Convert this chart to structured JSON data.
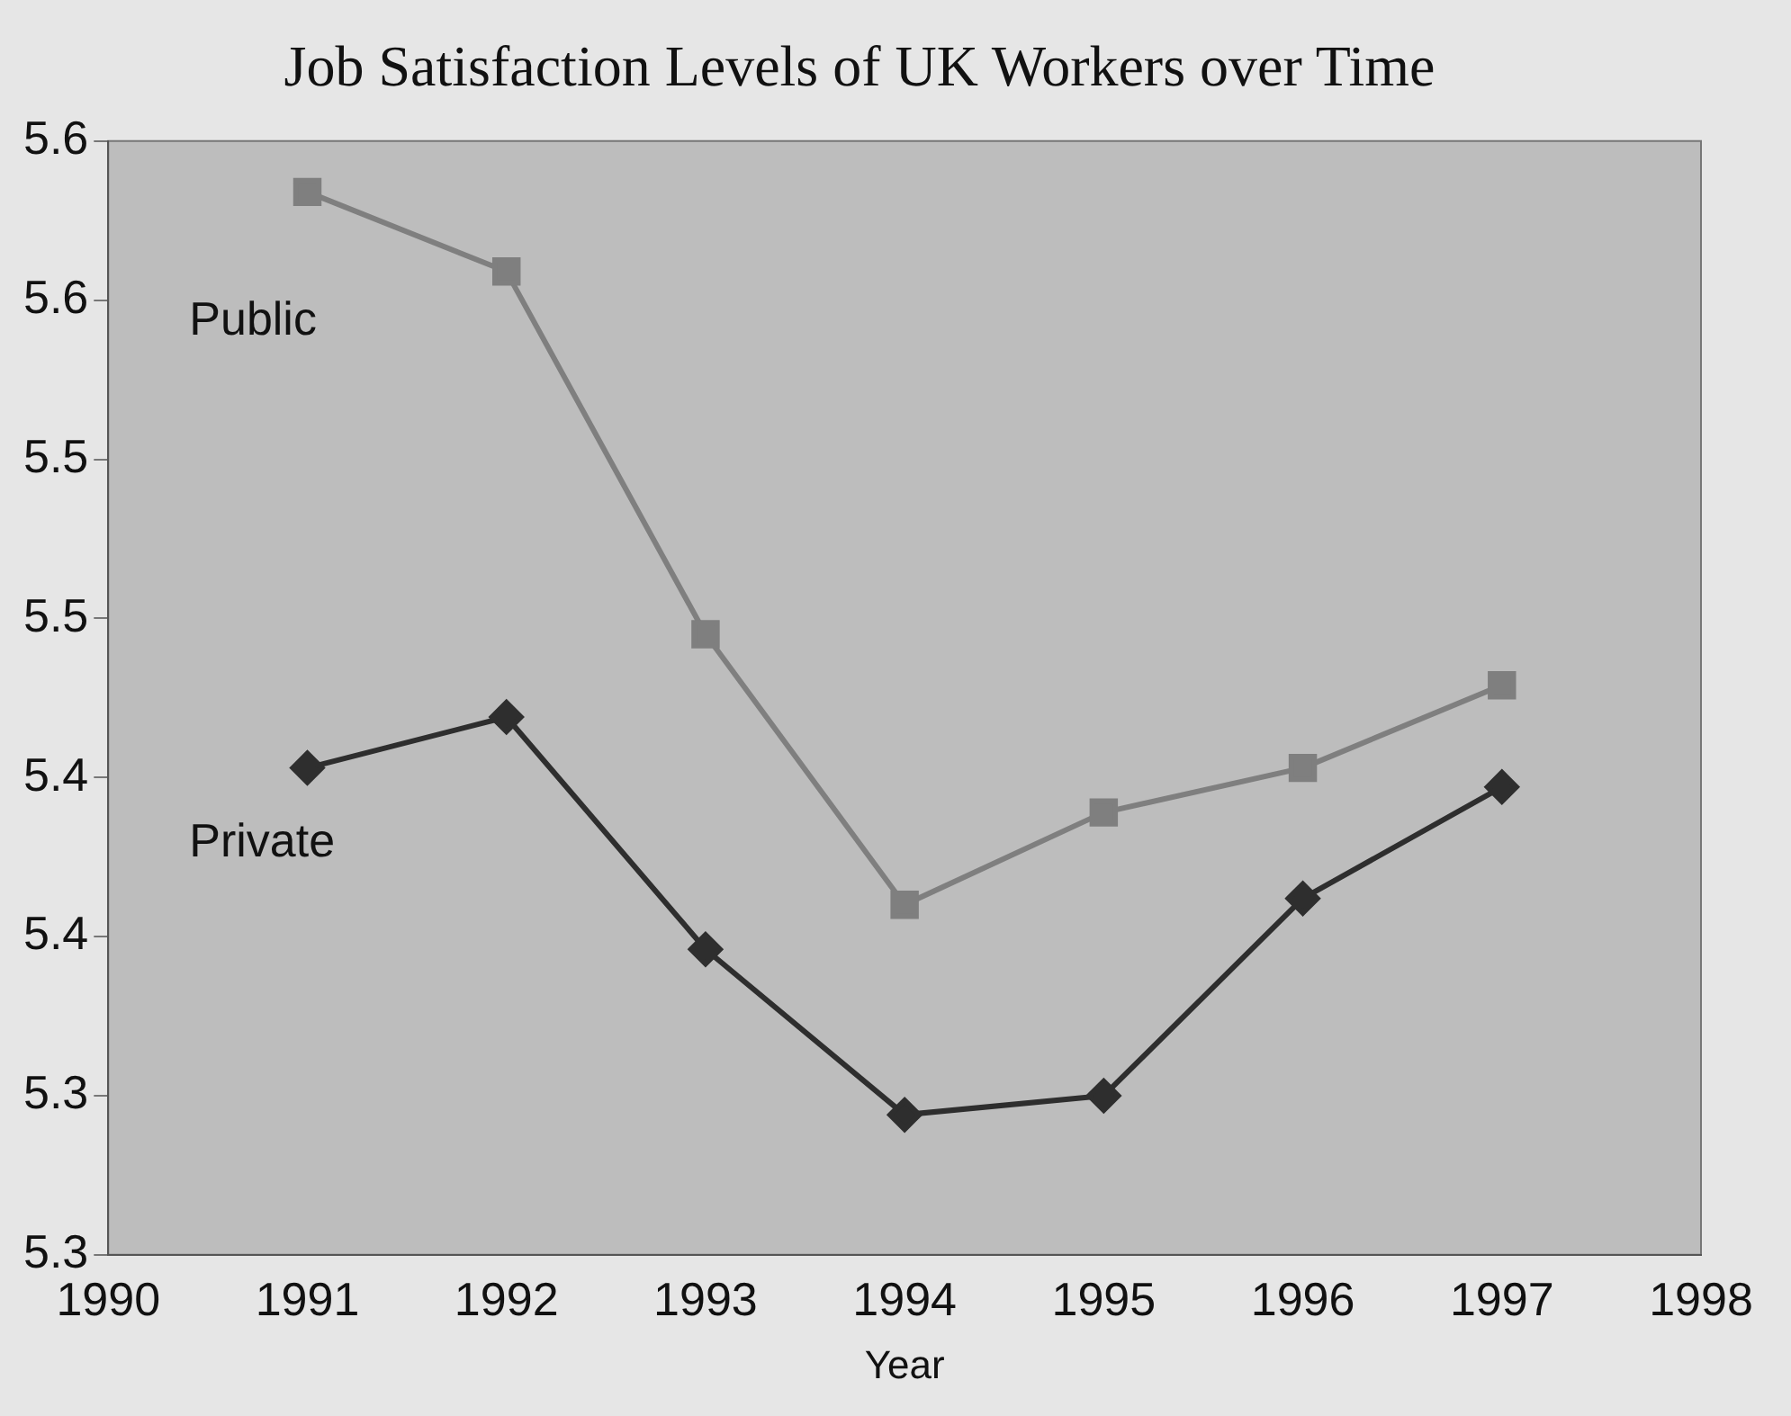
{
  "chart_data": {
    "type": "line",
    "title": "Job Satisfaction Levels of UK Workers over Time",
    "xlabel": "Year",
    "x": [
      1991,
      1992,
      1993,
      1994,
      1995,
      1996,
      1997
    ],
    "series": [
      {
        "name": "Public",
        "color": "#7f7f7f",
        "marker": "square",
        "values": [
          5.584,
          5.559,
          5.445,
          5.36,
          5.389,
          5.403,
          5.429
        ]
      },
      {
        "name": "Private",
        "color": "#2e2e2e",
        "marker": "diamond",
        "values": [
          5.403,
          5.419,
          5.346,
          5.294,
          5.3,
          5.362,
          5.397
        ]
      }
    ],
    "xlim": [
      1990,
      1998
    ],
    "xticks": [
      1990,
      1991,
      1992,
      1993,
      1994,
      1995,
      1996,
      1997,
      1998
    ],
    "ylim": [
      5.25,
      5.6
    ],
    "yticks": [
      {
        "value": 5.25,
        "label": "5.3"
      },
      {
        "value": 5.3,
        "label": "5.3"
      },
      {
        "value": 5.35,
        "label": "5.4"
      },
      {
        "value": 5.4,
        "label": "5.4"
      },
      {
        "value": 5.45,
        "label": "5.5"
      },
      {
        "value": 5.5,
        "label": "5.5"
      },
      {
        "value": 5.55,
        "label": "5.6"
      },
      {
        "value": 5.6,
        "label": "5.6"
      }
    ],
    "grid": false,
    "legend": false,
    "line_style": "solid"
  }
}
